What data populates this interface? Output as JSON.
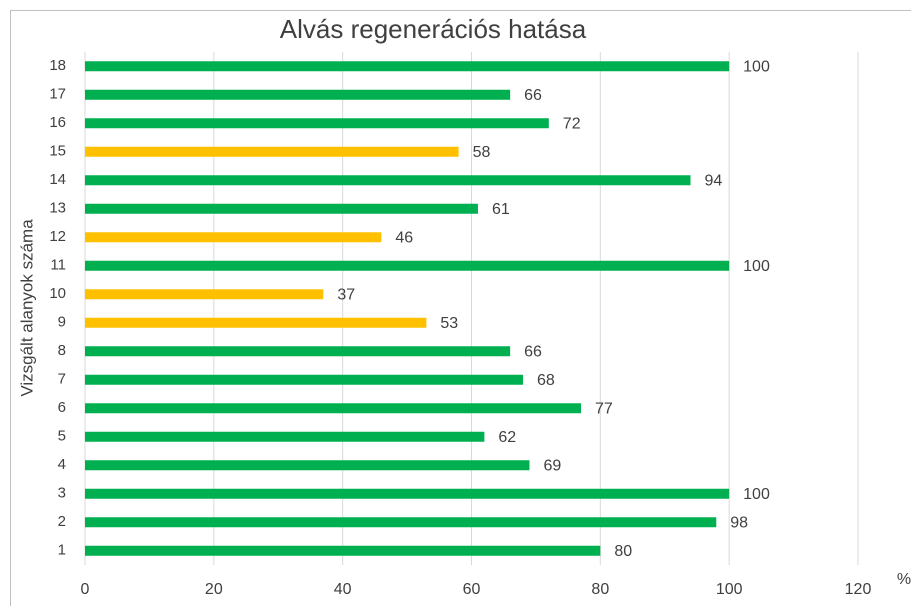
{
  "chart_data": {
    "type": "barh",
    "title": "Alvás regenerációs hatása",
    "y_label": "Vizsgált alanyok száma",
    "x_label": "%",
    "categories": [
      "1",
      "2",
      "3",
      "4",
      "5",
      "6",
      "7",
      "8",
      "9",
      "10",
      "11",
      "12",
      "13",
      "14",
      "15",
      "16",
      "17",
      "18"
    ],
    "values": [
      80,
      98,
      100,
      69,
      62,
      77,
      68,
      66,
      53,
      37,
      100,
      46,
      61,
      94,
      58,
      72,
      66,
      100
    ],
    "colors": [
      "#00b050",
      "#00b050",
      "#00b050",
      "#00b050",
      "#00b050",
      "#00b050",
      "#00b050",
      "#00b050",
      "#ffc000",
      "#ffc000",
      "#00b050",
      "#ffc000",
      "#00b050",
      "#00b050",
      "#ffc000",
      "#00b050",
      "#00b050",
      "#00b050"
    ],
    "xlim": [
      0,
      120
    ],
    "xticks": [
      0,
      20,
      40,
      60,
      80,
      100,
      120
    ],
    "grid": true
  }
}
